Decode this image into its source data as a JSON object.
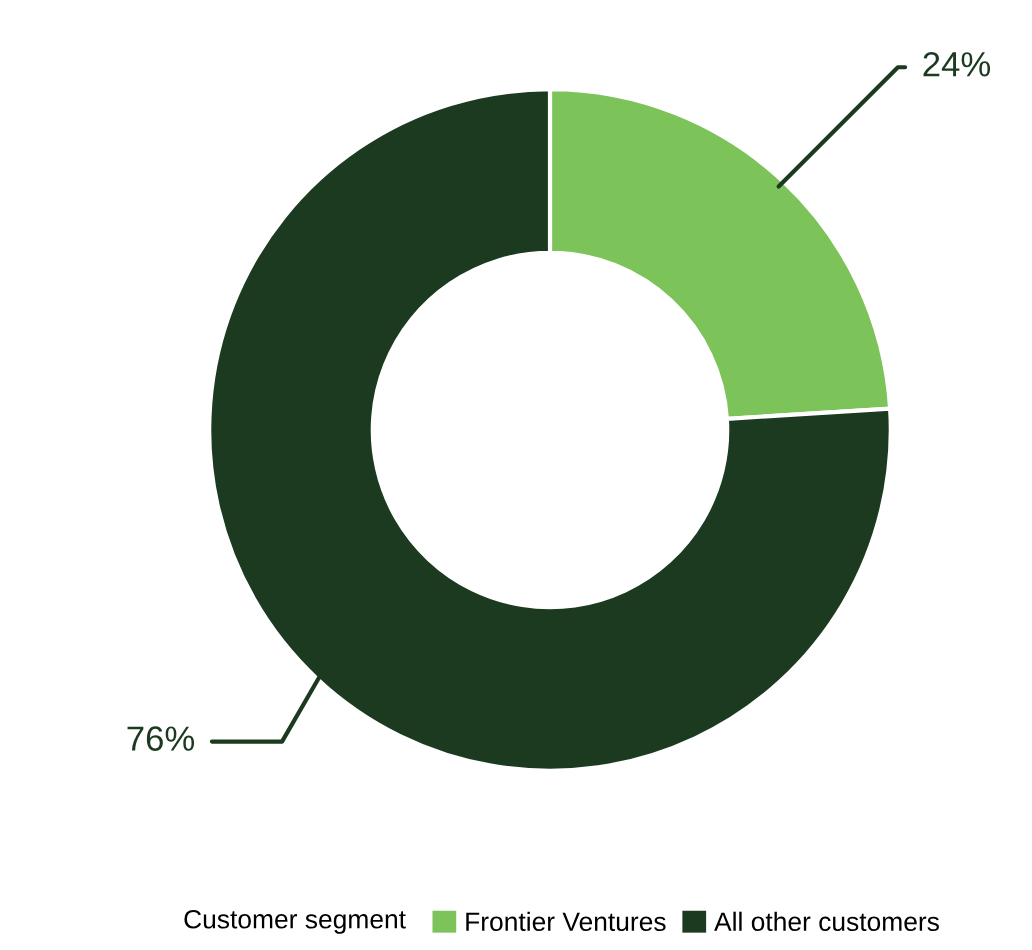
{
  "chart_data": {
    "type": "donut",
    "legend_title": "Customer segment",
    "categories": [
      "Frontier Ventures",
      "All other customers"
    ],
    "values": [
      24,
      76
    ],
    "colors": [
      "#7cc35a",
      "#1b3a20"
    ],
    "value_labels": [
      "24%",
      "76%"
    ],
    "legend": "bottom"
  }
}
